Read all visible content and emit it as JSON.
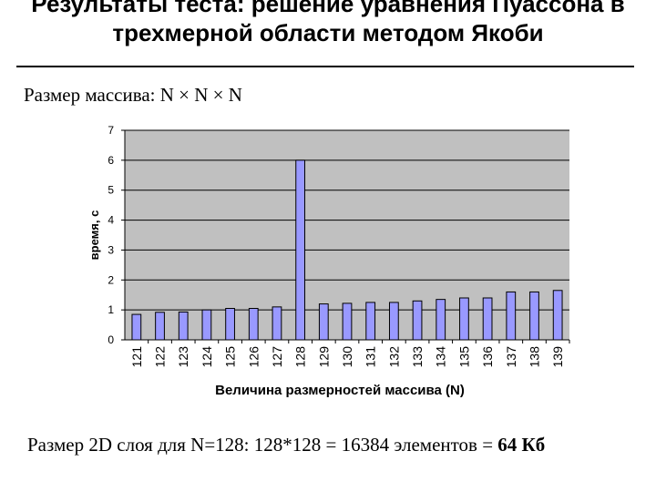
{
  "slide": {
    "title": "Результаты теста: решение уравнения Пуассона в трехмерной области методом Якоби",
    "subtitle": "Размер массива: N × N × N",
    "footer_prefix": "Размер 2D слоя для N=128: 128*128 = 16384 элементов = ",
    "footer_bold": "64 Кб"
  },
  "chart_data": {
    "type": "bar",
    "categories": [
      "121",
      "122",
      "123",
      "124",
      "125",
      "126",
      "127",
      "128",
      "129",
      "130",
      "131",
      "132",
      "133",
      "134",
      "135",
      "136",
      "137",
      "138",
      "139"
    ],
    "series": [
      {
        "values": [
          0.85,
          0.92,
          0.93,
          1.0,
          1.05,
          1.05,
          1.1,
          6.0,
          1.2,
          1.22,
          1.25,
          1.25,
          1.3,
          1.35,
          1.4,
          1.4,
          1.6,
          1.6,
          1.65
        ],
        "color": "#9999ff"
      }
    ],
    "title": "",
    "xlabel": "Величина размерностей массива (N)",
    "ylabel": "время, с",
    "ylim": [
      0,
      7
    ],
    "yticks": [
      0,
      1,
      2,
      3,
      4,
      5,
      6,
      7
    ],
    "grid": true,
    "plot_background": "#c0c0c0",
    "bar_color": "#9999ff"
  }
}
